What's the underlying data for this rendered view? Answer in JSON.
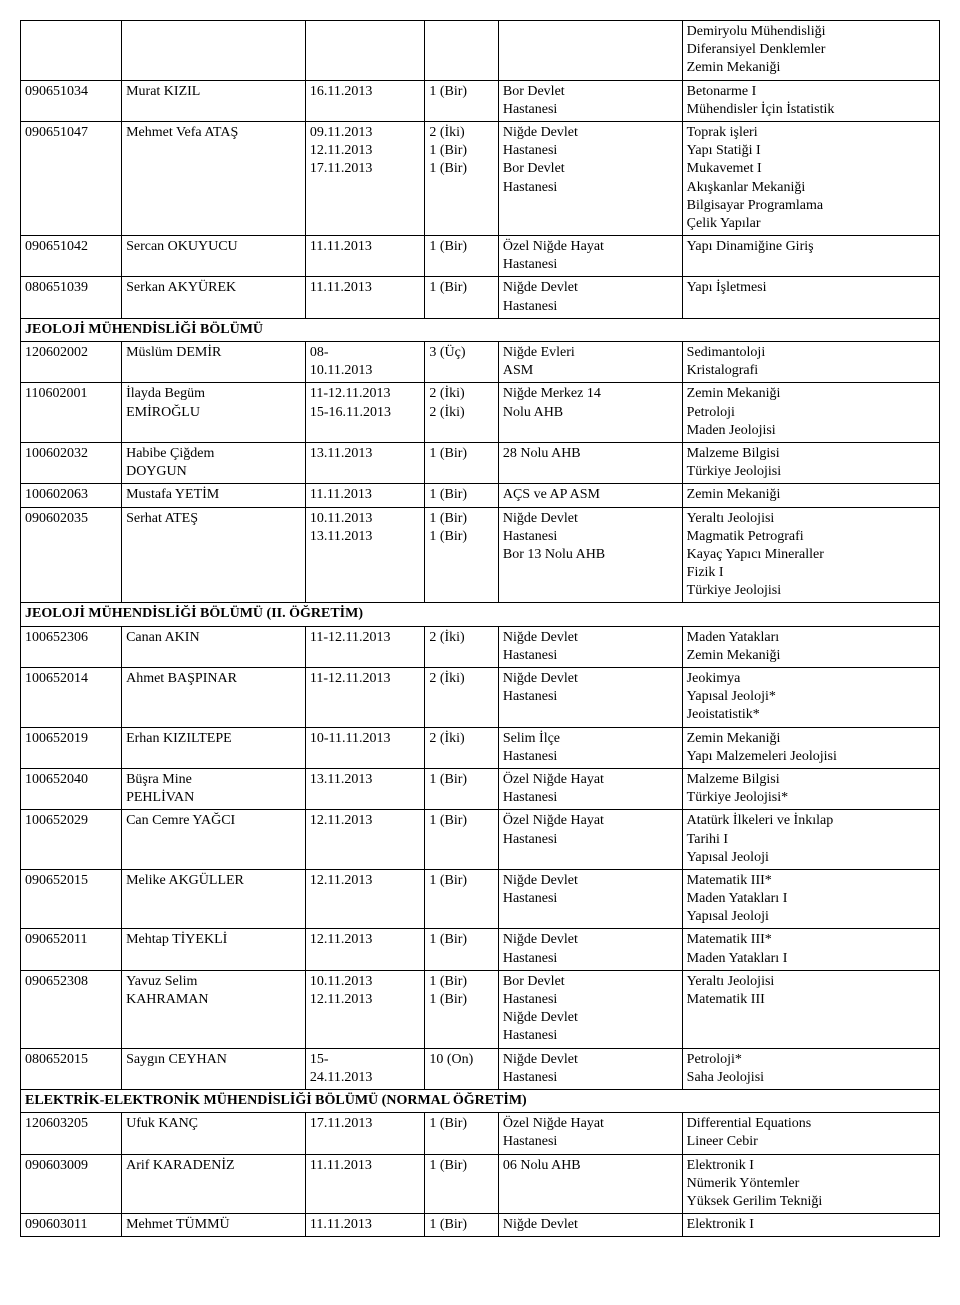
{
  "font_family": "Times New Roman",
  "font_size_pt": 11,
  "text_color": "#000000",
  "border_color": "#000000",
  "background_color": "#ffffff",
  "columns": [
    {
      "key": "id",
      "width_pct": 11
    },
    {
      "key": "name",
      "width_pct": 20
    },
    {
      "key": "date",
      "width_pct": 13
    },
    {
      "key": "count",
      "width_pct": 8
    },
    {
      "key": "location",
      "width_pct": 20
    },
    {
      "key": "courses",
      "width_pct": 28
    }
  ],
  "rows": [
    {
      "type": "data",
      "id": "",
      "name": "",
      "date": "",
      "count": "",
      "location": "",
      "courses": "Demiryolu Mühendisliği\nDiferansiyel Denklemler\nZemin Mekaniği"
    },
    {
      "type": "data",
      "id": "090651034",
      "name": "Murat KIZIL",
      "date": "16.11.2013",
      "count": "1 (Bir)",
      "location": "Bor Devlet\nHastanesi",
      "courses": "Betonarme I\nMühendisler İçin İstatistik"
    },
    {
      "type": "data",
      "id": "090651047",
      "name": "Mehmet Vefa ATAŞ",
      "date": "09.11.2013\n12.11.2013\n17.11.2013",
      "count": "2 (İki)\n1 (Bir)\n1 (Bir)",
      "location": "Niğde Devlet\nHastanesi\nBor Devlet\nHastanesi",
      "courses": "Toprak işleri\nYapı Statiği I\nMukavemet I\nAkışkanlar Mekaniği\nBilgisayar Programlama\nÇelik Yapılar"
    },
    {
      "type": "data",
      "id": "090651042",
      "name": "Sercan OKUYUCU",
      "date": "11.11.2013",
      "count": "1 (Bir)",
      "location": "Özel Niğde Hayat\nHastanesi",
      "courses": "Yapı Dinamiğine Giriş"
    },
    {
      "type": "data",
      "id": "080651039",
      "name": "Serkan AKYÜREK",
      "date": "11.11.2013",
      "count": "1 (Bir)",
      "location": "Niğde Devlet\nHastanesi",
      "courses": "Yapı İşletmesi"
    },
    {
      "type": "section",
      "label": "JEOLOJİ MÜHENDİSLİĞİ BÖLÜMÜ"
    },
    {
      "type": "data",
      "id": "120602002",
      "name": "Müslüm DEMİR",
      "date": "08-\n10.11.2013",
      "count": "3 (Üç)",
      "location": "Niğde Evleri\nASM",
      "courses": "Sedimantoloji\nKristalografi"
    },
    {
      "type": "data",
      "id": "110602001",
      "name": "İlayda Begüm\nEMİROĞLU",
      "date": "11-12.11.2013\n15-16.11.2013",
      "count": "2 (İki)\n2 (İki)",
      "location": "Niğde Merkez 14\nNolu AHB",
      "courses": "Zemin Mekaniği\nPetroloji\nMaden Jeolojisi"
    },
    {
      "type": "data",
      "id": "100602032",
      "name": "Habibe Çiğdem\nDOYGUN",
      "date": "13.11.2013",
      "count": "1 (Bir)",
      "location": "28 Nolu AHB",
      "courses": "Malzeme Bilgisi\nTürkiye Jeolojisi"
    },
    {
      "type": "data",
      "id": "100602063",
      "name": "Mustafa YETİM",
      "date": "11.11.2013",
      "count": "1 (Bir)",
      "location": "AÇS ve AP ASM",
      "courses": "Zemin Mekaniği"
    },
    {
      "type": "data",
      "id": "090602035",
      "name": "Serhat ATEŞ",
      "date": "10.11.2013\n13.11.2013",
      "count": "1 (Bir)\n1 (Bir)",
      "location": "Niğde Devlet\nHastanesi\nBor 13 Nolu AHB",
      "courses": "Yeraltı Jeolojisi\nMagmatik Petrografi\nKayaç Yapıcı Mineraller\nFizik I\nTürkiye Jeolojisi"
    },
    {
      "type": "section",
      "label": "JEOLOJİ MÜHENDİSLİĞİ BÖLÜMÜ (II. ÖĞRETİM)"
    },
    {
      "type": "data",
      "id": "100652306",
      "name": "Canan AKIN",
      "date": "11-12.11.2013",
      "count": "2 (İki)",
      "location": "Niğde Devlet\nHastanesi",
      "courses": "Maden Yatakları\nZemin Mekaniği"
    },
    {
      "type": "data",
      "id": "100652014",
      "name": "Ahmet BAŞPINAR",
      "date": "11-12.11.2013",
      "count": "2 (İki)",
      "location": "Niğde Devlet\nHastanesi",
      "courses": "Jeokimya\nYapısal Jeoloji*\nJeoistatistik*"
    },
    {
      "type": "data",
      "id": "100652019",
      "name": "Erhan KIZILTEPE",
      "date": "10-11.11.2013",
      "count": "2 (İki)",
      "location": "Selim İlçe\nHastanesi",
      "courses": "Zemin Mekaniği\nYapı Malzemeleri Jeolojisi"
    },
    {
      "type": "data",
      "id": "100652040",
      "name": "Büşra Mine\nPEHLİVAN",
      "date": "13.11.2013",
      "count": "1 (Bir)",
      "location": "Özel Niğde Hayat\nHastanesi",
      "courses": "Malzeme Bilgisi\nTürkiye Jeolojisi*"
    },
    {
      "type": "data",
      "id": "100652029",
      "name": "Can Cemre YAĞCI",
      "date": "12.11.2013",
      "count": "1 (Bir)",
      "location": "Özel Niğde Hayat\nHastanesi",
      "courses": "Atatürk İlkeleri ve İnkılap\nTarihi I\nYapısal Jeoloji"
    },
    {
      "type": "data",
      "id": "090652015",
      "name": "Melike AKGÜLLER",
      "date": "12.11.2013",
      "count": "1 (Bir)",
      "location": "Niğde Devlet\nHastanesi",
      "courses": "Matematik III*\nMaden Yatakları I\nYapısal Jeoloji"
    },
    {
      "type": "data",
      "id": "090652011",
      "name": "Mehtap TİYEKLİ",
      "date": "12.11.2013",
      "count": "1 (Bir)",
      "location": "Niğde Devlet\nHastanesi",
      "courses": "Matematik III*\nMaden Yatakları I"
    },
    {
      "type": "data",
      "id": "090652308",
      "name": "Yavuz Selim\nKAHRAMAN",
      "date": "10.11.2013\n12.11.2013",
      "count": "1 (Bir)\n1 (Bir)",
      "location": "Bor Devlet\nHastanesi\nNiğde Devlet\nHastanesi",
      "courses": "Yeraltı Jeolojisi\nMatematik III"
    },
    {
      "type": "data",
      "id": "080652015",
      "name": "Saygın CEYHAN",
      "date": "15-\n24.11.2013",
      "count": "10 (On)",
      "location": "Niğde Devlet\nHastanesi",
      "courses": "Petroloji*\nSaha Jeolojisi"
    },
    {
      "type": "section",
      "label": "ELEKTRİK-ELEKTRONİK MÜHENDİSLİĞİ BÖLÜMÜ (NORMAL ÖĞRETİM)"
    },
    {
      "type": "data",
      "id": "120603205",
      "name": "Ufuk KANÇ",
      "date": "17.11.2013",
      "count": "1 (Bir)",
      "location": "Özel Niğde Hayat\nHastanesi",
      "courses": "Differential Equations\nLineer Cebir"
    },
    {
      "type": "data",
      "id": "090603009",
      "name": "Arif KARADENİZ",
      "date": "11.11.2013",
      "count": "1 (Bir)",
      "location": "06 Nolu AHB",
      "courses": "Elektronik I\nNümerik Yöntemler\nYüksek Gerilim Tekniği"
    },
    {
      "type": "data",
      "id": "090603011",
      "name": "Mehmet TÜMMÜ",
      "date": "11.11.2013",
      "count": "1 (Bir)",
      "location": "Niğde Devlet",
      "courses": "Elektronik I"
    }
  ]
}
